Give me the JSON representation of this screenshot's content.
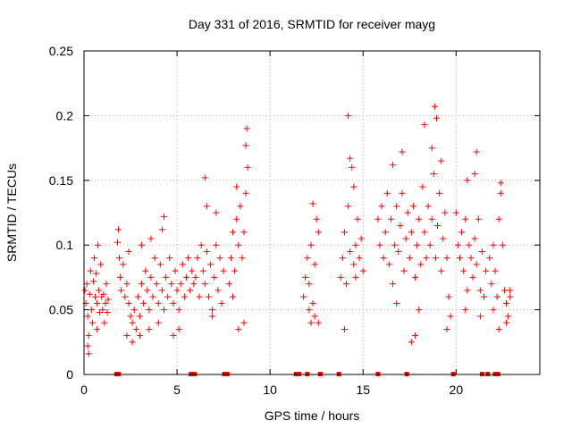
{
  "chart_data": {
    "type": "scatter",
    "title": "Day 331 of 2016, SRMTID for receiver mayg",
    "xlabel": "GPS time / hours",
    "ylabel": "SRMTID / TECUs",
    "xlim": [
      0,
      24.5
    ],
    "ylim": [
      0,
      0.25
    ],
    "xticks": [
      0,
      5,
      10,
      15,
      20
    ],
    "xtick_labels": [
      "0",
      "5",
      "10",
      "15",
      "20"
    ],
    "yticks": [
      0,
      0.05,
      0.1,
      0.15,
      0.2,
      0.25
    ],
    "ytick_labels": [
      "0",
      "0.05",
      "0.1",
      "0.15",
      "0.2",
      "0.25"
    ],
    "grid": true,
    "marker": "+",
    "marker_color": "#ff0000",
    "series": [
      {
        "name": "SRMTID",
        "points": [
          [
            0.05,
            0.065
          ],
          [
            0.1,
            0.055
          ],
          [
            0.15,
            0.07
          ],
          [
            0.2,
            0.045
          ],
          [
            0.25,
            0.03
          ],
          [
            0.3,
            0.062
          ],
          [
            0.35,
            0.08
          ],
          [
            0.4,
            0.05
          ],
          [
            0.45,
            0.04
          ],
          [
            0.5,
            0.072
          ],
          [
            0.55,
            0.09
          ],
          [
            0.6,
            0.06
          ],
          [
            0.65,
            0.078
          ],
          [
            0.7,
            0.055
          ],
          [
            0.75,
            0.1
          ],
          [
            0.8,
            0.065
          ],
          [
            0.85,
            0.048
          ],
          [
            0.9,
            0.085
          ],
          [
            0.95,
            0.06
          ],
          [
            0.2,
            0.022
          ],
          [
            0.25,
            0.016
          ],
          [
            0.7,
            0.035
          ],
          [
            1.0,
            0.05
          ],
          [
            1.05,
            0.062
          ],
          [
            1.1,
            0.04
          ],
          [
            1.15,
            0.055
          ],
          [
            1.2,
            0.07
          ],
          [
            1.25,
            0.048
          ],
          [
            1.3,
            0.058
          ],
          [
            1.8,
            0.102
          ],
          [
            1.85,
            0.112
          ],
          [
            1.9,
            0.09
          ],
          [
            1.95,
            0.075
          ],
          [
            2.0,
            0.065
          ],
          [
            2.1,
            0.085
          ],
          [
            2.2,
            0.06
          ],
          [
            2.3,
            0.07
          ],
          [
            2.4,
            0.055
          ],
          [
            2.5,
            0.045
          ],
          [
            2.6,
            0.04
          ],
          [
            2.7,
            0.05
          ],
          [
            2.8,
            0.035
          ],
          [
            2.9,
            0.06
          ],
          [
            3.0,
            0.045
          ],
          [
            3.1,
            0.07
          ],
          [
            3.2,
            0.055
          ],
          [
            3.3,
            0.08
          ],
          [
            3.4,
            0.065
          ],
          [
            3.5,
            0.05
          ],
          [
            3.6,
            0.075
          ],
          [
            3.7,
            0.06
          ],
          [
            3.8,
            0.09
          ],
          [
            3.9,
            0.07
          ],
          [
            4.0,
            0.055
          ],
          [
            4.1,
            0.085
          ],
          [
            4.2,
            0.065
          ],
          [
            4.3,
            0.05
          ],
          [
            4.4,
            0.075
          ],
          [
            4.5,
            0.06
          ],
          [
            4.6,
            0.09
          ],
          [
            4.7,
            0.07
          ],
          [
            4.8,
            0.055
          ],
          [
            4.9,
            0.08
          ],
          [
            5.0,
            0.065
          ],
          [
            5.1,
            0.05
          ],
          [
            5.2,
            0.07
          ],
          [
            5.3,
            0.085
          ],
          [
            5.4,
            0.06
          ],
          [
            5.5,
            0.075
          ],
          [
            5.6,
            0.09
          ],
          [
            5.7,
            0.065
          ],
          [
            5.8,
            0.08
          ],
          [
            5.9,
            0.07
          ],
          [
            2.3,
            0.03
          ],
          [
            2.6,
            0.025
          ],
          [
            3.0,
            0.03
          ],
          [
            3.5,
            0.035
          ],
          [
            4.0,
            0.04
          ],
          [
            4.2,
            0.112
          ],
          [
            4.3,
            0.122
          ],
          [
            3.6,
            0.105
          ],
          [
            3.1,
            0.1
          ],
          [
            2.4,
            0.095
          ],
          [
            5.1,
            0.035
          ],
          [
            4.8,
            0.03
          ],
          [
            6.0,
            0.075
          ],
          [
            6.1,
            0.09
          ],
          [
            6.2,
            0.06
          ],
          [
            6.3,
            0.1
          ],
          [
            6.4,
            0.08
          ],
          [
            6.5,
            0.07
          ],
          [
            6.6,
            0.095
          ],
          [
            6.7,
            0.06
          ],
          [
            6.8,
            0.085
          ],
          [
            6.9,
            0.05
          ],
          [
            7.0,
            0.075
          ],
          [
            7.1,
            0.1
          ],
          [
            7.2,
            0.065
          ],
          [
            7.3,
            0.09
          ],
          [
            7.4,
            0.055
          ],
          [
            7.5,
            0.08
          ],
          [
            6.5,
            0.152
          ],
          [
            6.6,
            0.13
          ],
          [
            7.1,
            0.125
          ],
          [
            6.9,
            0.045
          ],
          [
            7.8,
            0.07
          ],
          [
            7.9,
            0.09
          ],
          [
            8.0,
            0.11
          ],
          [
            8.1,
            0.08
          ],
          [
            8.2,
            0.12
          ],
          [
            8.3,
            0.1
          ],
          [
            8.4,
            0.13
          ],
          [
            8.5,
            0.09
          ],
          [
            8.6,
            0.11
          ],
          [
            8.7,
            0.14
          ],
          [
            8.8,
            0.16
          ],
          [
            8.75,
            0.19
          ],
          [
            8.7,
            0.177
          ],
          [
            8.2,
            0.145
          ],
          [
            8.3,
            0.035
          ],
          [
            8.6,
            0.04
          ],
          [
            8.0,
            0.06
          ],
          [
            11.8,
            0.06
          ],
          [
            11.9,
            0.075
          ],
          [
            12.0,
            0.09
          ],
          [
            12.1,
            0.07
          ],
          [
            12.2,
            0.1
          ],
          [
            12.3,
            0.055
          ],
          [
            12.4,
            0.085
          ],
          [
            12.5,
            0.12
          ],
          [
            12.6,
            0.11
          ],
          [
            12.3,
            0.132
          ],
          [
            12.4,
            0.045
          ],
          [
            12.6,
            0.04
          ],
          [
            12.1,
            0.05
          ],
          [
            12.2,
            0.04
          ],
          [
            13.8,
            0.075
          ],
          [
            13.9,
            0.09
          ],
          [
            14.0,
            0.11
          ],
          [
            14.1,
            0.07
          ],
          [
            14.2,
            0.13
          ],
          [
            14.3,
            0.095
          ],
          [
            14.4,
            0.16
          ],
          [
            14.5,
            0.085
          ],
          [
            14.6,
            0.1
          ],
          [
            14.7,
            0.12
          ],
          [
            14.8,
            0.09
          ],
          [
            14.9,
            0.105
          ],
          [
            15.0,
            0.08
          ],
          [
            14.2,
            0.2
          ],
          [
            14.3,
            0.167
          ],
          [
            14.0,
            0.035
          ],
          [
            14.5,
            0.145
          ],
          [
            14.6,
            0.075
          ],
          [
            15.8,
            0.12
          ],
          [
            15.9,
            0.1
          ],
          [
            16.0,
            0.13
          ],
          [
            16.1,
            0.09
          ],
          [
            16.2,
            0.11
          ],
          [
            16.3,
            0.14
          ],
          [
            16.4,
            0.085
          ],
          [
            16.5,
            0.12
          ],
          [
            16.6,
            0.07
          ],
          [
            16.7,
            0.1
          ],
          [
            16.8,
            0.13
          ],
          [
            16.9,
            0.095
          ],
          [
            17.0,
            0.115
          ],
          [
            17.1,
            0.14
          ],
          [
            17.2,
            0.08
          ],
          [
            17.3,
            0.105
          ],
          [
            17.4,
            0.125
          ],
          [
            17.5,
            0.09
          ],
          [
            17.6,
            0.11
          ],
          [
            17.7,
            0.13
          ],
          [
            17.8,
            0.075
          ],
          [
            17.9,
            0.1
          ],
          [
            18.0,
            0.12
          ],
          [
            18.1,
            0.085
          ],
          [
            18.2,
            0.145
          ],
          [
            18.3,
            0.11
          ],
          [
            18.4,
            0.09
          ],
          [
            18.5,
            0.13
          ],
          [
            18.6,
            0.1
          ],
          [
            18.7,
            0.12
          ],
          [
            18.8,
            0.155
          ],
          [
            18.9,
            0.09
          ],
          [
            19.0,
            0.115
          ],
          [
            19.1,
            0.14
          ],
          [
            19.2,
            0.08
          ],
          [
            19.3,
            0.105
          ],
          [
            19.4,
            0.125
          ],
          [
            19.5,
            0.09
          ],
          [
            19.6,
            0.06
          ],
          [
            19.7,
            0.045
          ],
          [
            16.6,
            0.162
          ],
          [
            17.1,
            0.172
          ],
          [
            18.3,
            0.193
          ],
          [
            18.7,
            0.175
          ],
          [
            18.85,
            0.207
          ],
          [
            18.95,
            0.198
          ],
          [
            19.2,
            0.165
          ],
          [
            17.8,
            0.03
          ],
          [
            17.6,
            0.025
          ],
          [
            18.0,
            0.05
          ],
          [
            16.8,
            0.055
          ],
          [
            19.5,
            0.035
          ],
          [
            20.0,
            0.125
          ],
          [
            20.1,
            0.1
          ],
          [
            20.2,
            0.09
          ],
          [
            20.3,
            0.11
          ],
          [
            20.4,
            0.08
          ],
          [
            20.5,
            0.12
          ],
          [
            20.6,
            0.065
          ],
          [
            20.7,
            0.1
          ],
          [
            20.8,
            0.09
          ],
          [
            20.9,
            0.075
          ],
          [
            21.0,
            0.105
          ],
          [
            21.1,
            0.085
          ],
          [
            21.2,
            0.12
          ],
          [
            21.3,
            0.065
          ],
          [
            21.4,
            0.095
          ],
          [
            21.5,
            0.06
          ],
          [
            21.6,
            0.08
          ],
          [
            21.1,
            0.172
          ],
          [
            21.0,
            0.155
          ],
          [
            20.6,
            0.15
          ],
          [
            20.5,
            0.05
          ],
          [
            21.3,
            0.045
          ],
          [
            21.8,
            0.09
          ],
          [
            21.9,
            0.07
          ],
          [
            22.0,
            0.1
          ],
          [
            22.1,
            0.08
          ],
          [
            22.2,
            0.06
          ],
          [
            22.3,
            0.12
          ],
          [
            22.4,
            0.14
          ],
          [
            22.5,
            0.1
          ],
          [
            22.6,
            0.065
          ],
          [
            22.7,
            0.055
          ],
          [
            22.8,
            0.045
          ],
          [
            22.9,
            0.06
          ],
          [
            22.4,
            0.148
          ],
          [
            22.0,
            0.05
          ],
          [
            22.3,
            0.035
          ],
          [
            22.7,
            0.04
          ],
          [
            22.9,
            0.065
          ]
        ]
      }
    ],
    "zero_markers": [
      1.75,
      1.85,
      5.75,
      5.85,
      5.95,
      7.55,
      7.7,
      11.4,
      11.55,
      12.0,
      12.7,
      13.7,
      15.8,
      17.35,
      19.85,
      21.4,
      21.7,
      22.1,
      22.25
    ]
  }
}
